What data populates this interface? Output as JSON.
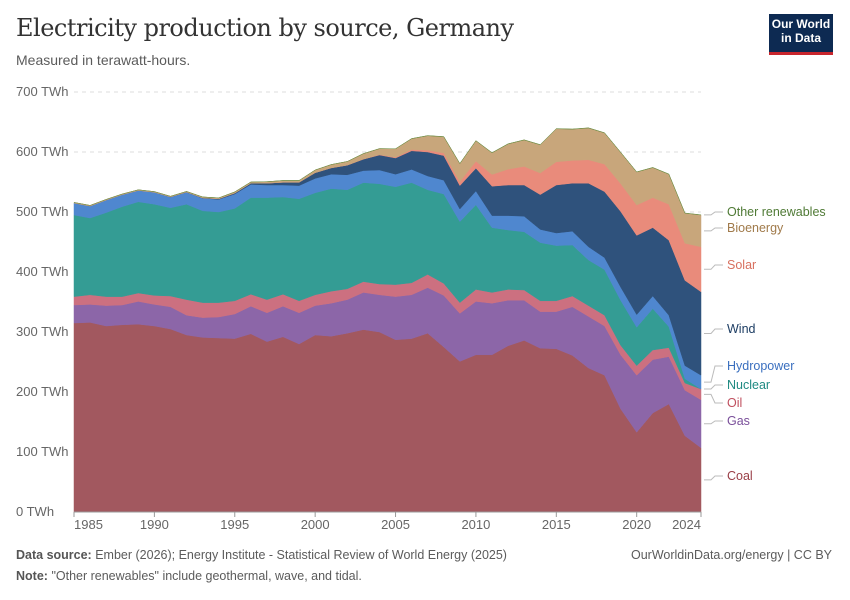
{
  "header": {
    "title": "Electricity production by source, Germany",
    "subtitle": "Measured in terawatt-hours.",
    "logo": "Our World in Data"
  },
  "footer": {
    "source_label": "Data source:",
    "source_text": "Ember (2026); Energy Institute - Statistical Review of World Energy (2025)",
    "note_label": "Note:",
    "note_text": "\"Other renewables\" include geothermal, wave, and tidal.",
    "credit": "OurWorldinData.org/energy | CC BY"
  },
  "chart_data": {
    "type": "area",
    "stacked": true,
    "title": "Electricity production by source, Germany",
    "ylabel": "TWh",
    "ylim": [
      0,
      700
    ],
    "yticks": [
      "0 TWh",
      "100 TWh",
      "200 TWh",
      "300 TWh",
      "400 TWh",
      "500 TWh",
      "600 TWh",
      "700 TWh"
    ],
    "xticks": [
      "1985",
      "1990",
      "1995",
      "2000",
      "2005",
      "2010",
      "2015",
      "2020",
      "2024"
    ],
    "grid": true,
    "legend": "right-inline",
    "x": [
      1985,
      1986,
      1987,
      1988,
      1989,
      1990,
      1991,
      1992,
      1993,
      1994,
      1995,
      1996,
      1997,
      1998,
      1999,
      2000,
      2001,
      2002,
      2003,
      2004,
      2005,
      2006,
      2007,
      2008,
      2009,
      2010,
      2011,
      2012,
      2013,
      2014,
      2015,
      2016,
      2017,
      2018,
      2019,
      2020,
      2021,
      2022,
      2023,
      2024
    ],
    "series": [
      {
        "name": "Coal",
        "color": "#a2585f",
        "label_color": "#9a3f47",
        "values": [
          315,
          316,
          310,
          312,
          313,
          310,
          305,
          295,
          291,
          290,
          289,
          297,
          284,
          292,
          280,
          295,
          293,
          298,
          304,
          300,
          287,
          289,
          298,
          275,
          251,
          262,
          262,
          277,
          286,
          273,
          272,
          261,
          240,
          228,
          172,
          133,
          165,
          180,
          127,
          107
        ]
      },
      {
        "name": "Gas",
        "color": "#8c66a8",
        "label_color": "#7a4f9a",
        "values": [
          30,
          30,
          34,
          33,
          38,
          36,
          37,
          33,
          33,
          35,
          41,
          46,
          48,
          51,
          52,
          49,
          55,
          56,
          62,
          62,
          72,
          73,
          76,
          86,
          80,
          89,
          86,
          76,
          67,
          61,
          62,
          81,
          86,
          82,
          90,
          95,
          89,
          79,
          76,
          80
        ]
      },
      {
        "name": "Oil",
        "color": "#cc7080",
        "label_color": "#c0505f",
        "values": [
          14,
          16,
          15,
          14,
          14,
          15,
          18,
          26,
          25,
          24,
          22,
          20,
          22,
          20,
          20,
          18,
          20,
          18,
          18,
          18,
          20,
          20,
          22,
          20,
          18,
          20,
          18,
          18,
          17,
          18,
          18,
          18,
          18,
          18,
          16,
          16,
          16,
          15,
          12,
          18
        ]
      },
      {
        "name": "Nuclear",
        "color": "#349c94",
        "label_color": "#1f8a82",
        "values": [
          136,
          128,
          140,
          150,
          152,
          152,
          147,
          159,
          153,
          151,
          154,
          161,
          170,
          162,
          170,
          170,
          171,
          165,
          165,
          167,
          163,
          167,
          141,
          149,
          135,
          141,
          108,
          99,
          97,
          97,
          92,
          85,
          76,
          76,
          75,
          64,
          69,
          35,
          7,
          0
        ]
      },
      {
        "name": "Hydropower",
        "color": "#4f87cf",
        "label_color": "#3a6fbf",
        "values": [
          20,
          20,
          21,
          20,
          19,
          20,
          18,
          20,
          21,
          21,
          24,
          22,
          21,
          20,
          22,
          24,
          24,
          25,
          20,
          23,
          21,
          22,
          23,
          23,
          21,
          23,
          20,
          24,
          26,
          22,
          21,
          23,
          22,
          20,
          22,
          21,
          21,
          19,
          22,
          23
        ]
      },
      {
        "name": "Wind",
        "color": "#2f527c",
        "label_color": "#1d3d63",
        "values": [
          0,
          0,
          0,
          0,
          0,
          0,
          0.2,
          0.3,
          0.6,
          1,
          1.5,
          2,
          3,
          4.5,
          5.5,
          9.5,
          10.5,
          16,
          19,
          25,
          27,
          31,
          40,
          41,
          39,
          38,
          49,
          51,
          52,
          58,
          80,
          80,
          106,
          110,
          126,
          132,
          114,
          125,
          142,
          139
        ]
      },
      {
        "name": "Solar",
        "color": "#e98b7b",
        "label_color": "#d8705f",
        "values": [
          0,
          0,
          0,
          0,
          0,
          0,
          0,
          0,
          0,
          0,
          0,
          0,
          0,
          0,
          0,
          0,
          0.1,
          0.2,
          0.3,
          0.6,
          1.3,
          2.2,
          3.1,
          4.4,
          6.6,
          11.7,
          19.6,
          26.4,
          31,
          36,
          38.7,
          38,
          39,
          45.8,
          46.4,
          50.6,
          50,
          60,
          62,
          75
        ]
      },
      {
        "name": "Bioenergy",
        "color": "#c8a67b",
        "label_color": "#a07a4a",
        "values": [
          1,
          1,
          1,
          1,
          1,
          1,
          1,
          1,
          1.5,
          1.5,
          2,
          2,
          2.5,
          3,
          3,
          4.5,
          5.5,
          6,
          9,
          10,
          14,
          18,
          24,
          27,
          30,
          34,
          36,
          42,
          44,
          47,
          55,
          52,
          53,
          52,
          52,
          55,
          50,
          50,
          50,
          53
        ]
      },
      {
        "name": "Other renewables",
        "color": "#6f8f47",
        "label_color": "#4f7a35",
        "values": [
          0,
          0,
          0,
          0,
          0,
          0,
          0,
          0,
          0,
          0,
          0,
          0,
          0,
          0,
          0,
          0,
          0,
          0,
          0,
          0,
          0.1,
          0.2,
          0.3,
          0.3,
          0.3,
          0.3,
          0.3,
          0.3,
          0.3,
          0.3,
          0.3,
          0.3,
          0.3,
          0.3,
          0.3,
          0.3,
          0.3,
          0.3,
          0.3,
          0.3
        ]
      }
    ]
  }
}
